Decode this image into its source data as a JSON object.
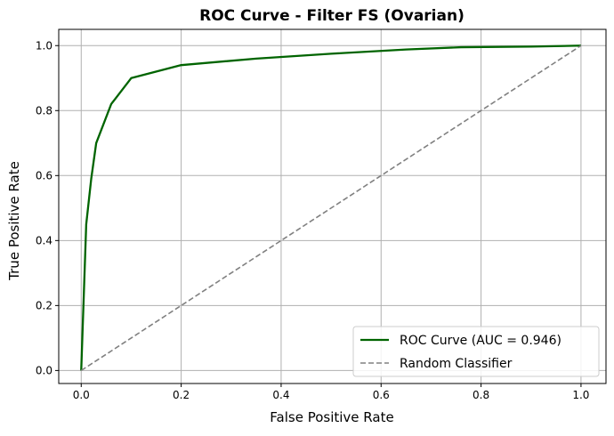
{
  "chart_data": {
    "type": "line",
    "title": "ROC Curve - Filter FS (Ovarian)",
    "xlabel": "False Positive Rate",
    "ylabel": "True Positive Rate",
    "xlim": [
      -0.045,
      1.05
    ],
    "ylim": [
      -0.04,
      1.05
    ],
    "xticks": [
      0.0,
      0.2,
      0.4,
      0.6,
      0.8,
      1.0
    ],
    "yticks": [
      0.0,
      0.2,
      0.4,
      0.6,
      0.8,
      1.0
    ],
    "xtick_labels": [
      "0.0",
      "0.2",
      "0.4",
      "0.6",
      "0.8",
      "1.0"
    ],
    "ytick_labels": [
      "0.0",
      "0.2",
      "0.4",
      "0.6",
      "0.8",
      "1.0"
    ],
    "grid": true,
    "legend_position": "lower-right",
    "series": [
      {
        "name": "ROC Curve (AUC = 0.946)",
        "color": "#006400",
        "style": "solid",
        "x": [
          0.0,
          0.01,
          0.02,
          0.03,
          0.06,
          0.1,
          0.2,
          0.35,
          0.5,
          0.65,
          0.76,
          0.9,
          1.0
        ],
        "y": [
          0.0,
          0.45,
          0.59,
          0.7,
          0.82,
          0.9,
          0.94,
          0.96,
          0.975,
          0.988,
          0.995,
          0.997,
          1.0
        ]
      },
      {
        "name": "Random Classifier",
        "color": "#808080",
        "style": "dashed",
        "x": [
          0.0,
          1.0
        ],
        "y": [
          0.0,
          1.0
        ]
      }
    ]
  }
}
